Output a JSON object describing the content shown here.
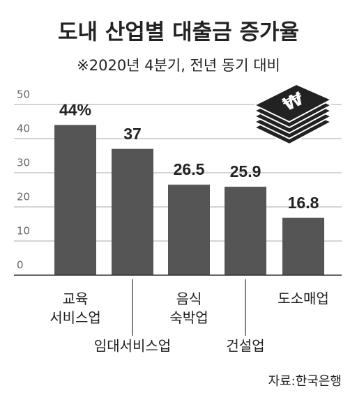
{
  "chart_data": {
    "type": "bar",
    "title": "도내 산업별 대출금 증가율",
    "subtitle": "※2020년 4분기, 전년 동기 대비",
    "categories": [
      "교육\n서비스업",
      "임대서비스업",
      "음식\n숙박업",
      "건설업",
      "도소매업"
    ],
    "values": [
      44,
      37,
      26.5,
      25.9,
      16.8
    ],
    "value_labels": [
      "44%",
      "37",
      "26.5",
      "25.9",
      "16.8"
    ],
    "color": "#555555",
    "ylim": [
      0,
      50
    ],
    "yticks": [
      0,
      10,
      20,
      30,
      40,
      50
    ],
    "grid": true,
    "source": "자료:한국은행"
  }
}
